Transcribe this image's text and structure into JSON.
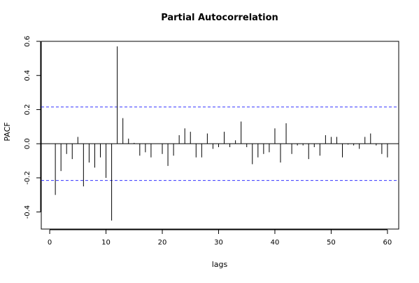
{
  "chart_data": {
    "type": "bar",
    "title": "Partial Autocorrelation",
    "xlabel": "lags",
    "ylabel": "PACF",
    "xlim": [
      -1.5,
      62
    ],
    "ylim": [
      -0.5,
      0.6
    ],
    "x_ticks": [
      0,
      10,
      20,
      30,
      40,
      50,
      60
    ],
    "x_tick_labels": [
      "0",
      "10",
      "20",
      "30",
      "40",
      "50",
      "60"
    ],
    "y_ticks": [
      -0.4,
      -0.2,
      0.0,
      0.2,
      0.4,
      0.6
    ],
    "y_tick_labels": [
      "-0.4",
      "-0.2",
      "0.0",
      "0.2",
      "0.4",
      "0.6"
    ],
    "confidence_band": 0.215,
    "colors": {
      "bars": "#000000",
      "band": "#3333ff",
      "axis": "#000000"
    },
    "grid": false,
    "lags": [
      1,
      2,
      3,
      4,
      5,
      6,
      7,
      8,
      9,
      10,
      11,
      12,
      13,
      14,
      15,
      16,
      17,
      18,
      19,
      20,
      21,
      22,
      23,
      24,
      25,
      26,
      27,
      28,
      29,
      30,
      31,
      32,
      33,
      34,
      35,
      36,
      37,
      38,
      39,
      40,
      41,
      42,
      43,
      44,
      45,
      46,
      47,
      48,
      49,
      50,
      51,
      52,
      53,
      54,
      55,
      56,
      57,
      58,
      59,
      60
    ],
    "values": [
      -0.3,
      -0.16,
      -0.06,
      -0.09,
      0.04,
      -0.25,
      -0.11,
      -0.14,
      -0.08,
      -0.2,
      -0.45,
      0.57,
      0.15,
      0.03,
      0.005,
      -0.07,
      -0.05,
      -0.08,
      0.0,
      -0.06,
      -0.13,
      -0.07,
      0.05,
      0.09,
      0.07,
      -0.08,
      -0.08,
      0.06,
      -0.03,
      -0.02,
      0.07,
      -0.02,
      0.02,
      0.13,
      -0.02,
      -0.12,
      -0.08,
      -0.06,
      -0.05,
      0.09,
      -0.11,
      0.12,
      -0.06,
      -0.01,
      -0.01,
      -0.09,
      -0.02,
      -0.07,
      0.05,
      0.04,
      0.04,
      -0.08,
      -0.005,
      -0.01,
      -0.03,
      0.04,
      0.06,
      -0.01,
      -0.06,
      -0.08
    ]
  }
}
